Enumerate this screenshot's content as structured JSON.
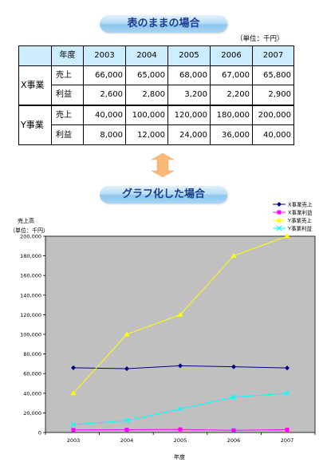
{
  "section1_title": "表のままの場合",
  "section2_title": "グラフ化した場合",
  "table": {
    "unit": "（単位：千円）",
    "header": [
      "年度",
      "2003",
      "2004",
      "2005",
      "2006",
      "2007"
    ],
    "businesses": [
      {
        "name": "X事業",
        "rows": [
          {
            "label": "売上",
            "values": [
              "66,000",
              "65,000",
              "68,000",
              "67,000",
              "65,800"
            ]
          },
          {
            "label": "利益",
            "values": [
              "2,600",
              "2,800",
              "3,200",
              "2,200",
              "2,900"
            ]
          }
        ]
      },
      {
        "name": "Y事業",
        "rows": [
          {
            "label": "売上",
            "values": [
              "40,000",
              "100,000",
              "120,000",
              "180,000",
              "200,000"
            ]
          },
          {
            "label": "利益",
            "values": [
              "8,000",
              "12,000",
              "24,000",
              "36,000",
              "40,000"
            ]
          }
        ]
      }
    ]
  },
  "colors": {
    "plot_bg": "#c0c0c0",
    "x_sales": "#000080",
    "x_profit": "#ff00ff",
    "y_sales": "#ffff00",
    "y_profit": "#00ffff",
    "table_header": "#ccecff",
    "title_text": "#1a3d8f",
    "arrow": "#f9b979"
  },
  "chart_data": {
    "type": "line",
    "ylabel": "売上高",
    "ylabel_unit": "（単位：千円）",
    "xlabel": "年度",
    "categories": [
      "2003",
      "2004",
      "2005",
      "2006",
      "2007"
    ],
    "ylim": [
      0,
      200000
    ],
    "ytick_labels": [
      "0",
      "20,000",
      "40,000",
      "60,000",
      "80,000",
      "100,000",
      "120,000",
      "140,000",
      "160,000",
      "180,000",
      "200,000"
    ],
    "grid": false,
    "legend": "top-right, outside plot",
    "series": [
      {
        "name": "X事業売上",
        "values": [
          66000,
          65000,
          68000,
          67000,
          65800
        ],
        "marker": "diamond"
      },
      {
        "name": "X事業利益",
        "values": [
          2600,
          2800,
          3200,
          2200,
          2900
        ],
        "marker": "square"
      },
      {
        "name": "Y事業売上",
        "values": [
          40000,
          100000,
          120000,
          180000,
          200000
        ],
        "marker": "triangle"
      },
      {
        "name": "Y事業利益",
        "values": [
          8000,
          12000,
          24000,
          36000,
          40000
        ],
        "marker": "x"
      }
    ]
  }
}
